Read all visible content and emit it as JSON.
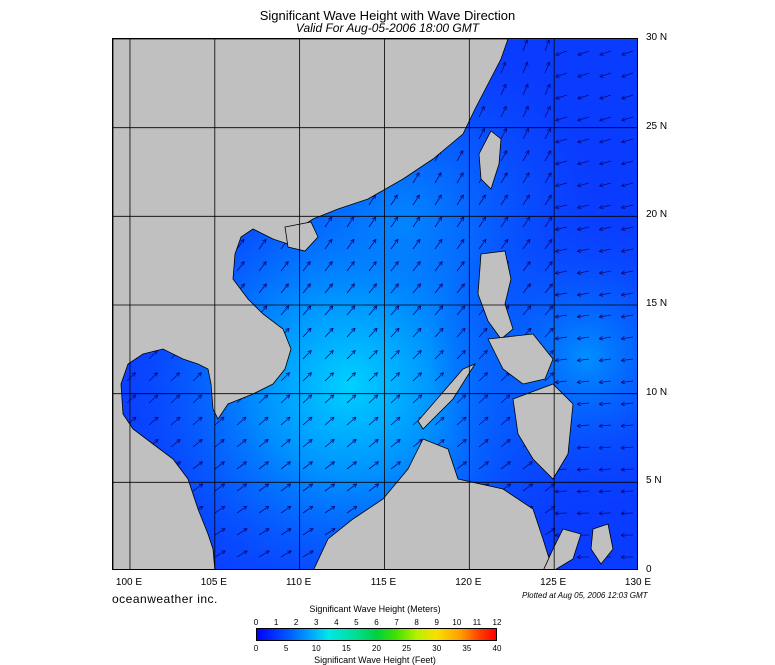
{
  "title": "Significant Wave Height with Wave Direction",
  "subtitle": "Valid For Aug-05-2006 18:00 GMT",
  "brand": "oceanweather inc.",
  "plotted": "Plotted at Aug 05, 2006 12:03 GMT",
  "latitude_labels": [
    "30 N",
    "25 N",
    "20 N",
    "15 N",
    "10 N",
    "5 N",
    "0"
  ],
  "longitude_labels": [
    "100 E",
    "105 E",
    "110 E",
    "115 E",
    "120 E",
    "125 E",
    "130 E"
  ],
  "map_extent": {
    "lon_min": 99,
    "lon_max": 130,
    "lat_min": 0,
    "lat_max": 30
  },
  "colors": {
    "land": "#c0c0c0",
    "sea_low": "#0a3cff",
    "sea_mid": "#0078ff",
    "sea_high": "#00c8ff",
    "arrow": "#0a0a78"
  },
  "colorbar": {
    "title_top": "Significant Wave Height (Meters)",
    "title_bottom": "Significant Wave Height (Feet)",
    "meters_ticks": [
      "0",
      "1",
      "2",
      "3",
      "4",
      "5",
      "6",
      "7",
      "8",
      "9",
      "10",
      "11",
      "12"
    ],
    "feet_ticks": [
      "0",
      "5",
      "10",
      "15",
      "20",
      "25",
      "30",
      "35",
      "40"
    ]
  }
}
